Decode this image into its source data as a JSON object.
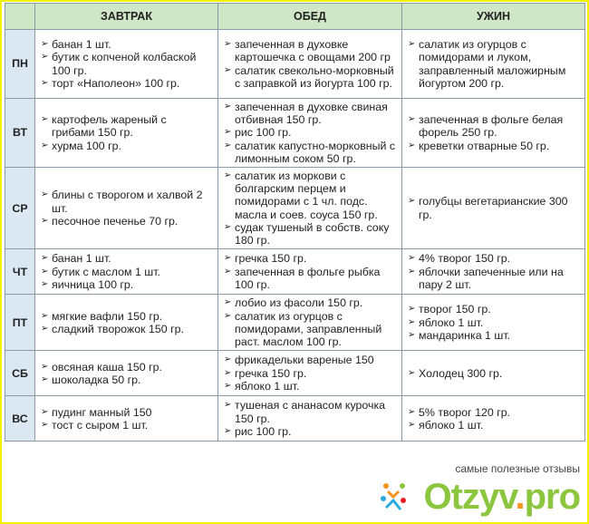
{
  "headers": [
    "",
    "ЗАВТРАК",
    "ОБЕД",
    "УЖИН"
  ],
  "rows": [
    {
      "day": "ПН",
      "breakfast": [
        "банан 1 шт.",
        "бутик с копченой колбаской 100 гр.",
        "торт «Наполеон» 100 гр."
      ],
      "lunch": [
        "запеченная в духовке картошечка с овощами 200 гр",
        "салатик свекольно-морковный с заправкой из йогурта 100 гр."
      ],
      "dinner": [
        "салатик из огурцов с помидорами и луком, заправленный маложирным йогуртом 200 гр."
      ]
    },
    {
      "day": "ВТ",
      "breakfast": [
        "картофель жареный с грибами 150 гр.",
        "хурма 100 гр."
      ],
      "lunch": [
        "запеченная в духовке свиная отбивная 150 гр.",
        "рис 100 гр.",
        "салатик капустно-морковный с лимонным соком 50 гр."
      ],
      "dinner": [
        "запеченная в фольге белая форель 250 гр.",
        "креветки отварные 50 гр."
      ]
    },
    {
      "day": "СР",
      "breakfast": [
        "блины с творогом и халвой 2 шт.",
        "песочное печенье 70 гр."
      ],
      "lunch": [
        "салатик из моркови с болгарским перцем и помидорами с 1 чл. подс. масла и соев. соуса 150 гр.",
        "судак тушеный в собств. соку 180 гр."
      ],
      "dinner": [
        "голубцы вегетарианские 300 гр."
      ]
    },
    {
      "day": "ЧТ",
      "breakfast": [
        "банан 1 шт.",
        "бутик с маслом 1 шт.",
        "яичница 100 гр."
      ],
      "lunch": [
        "гречка 150 гр.",
        "запеченная в фольге рыбка 100 гр."
      ],
      "dinner": [
        "4% творог 150 гр.",
        "яблочки запеченные или на пару 2 шт."
      ]
    },
    {
      "day": "ПТ",
      "breakfast": [
        "мягкие вафли 150 гр.",
        "сладкий творожок 150 гр."
      ],
      "lunch": [
        "лобио из фасоли 150 гр.",
        "салатик из огурцов с помидорами, заправленный раст. маслом 100 гр."
      ],
      "dinner": [
        "творог 150 гр.",
        "яблоко 1 шт.",
        "мандаринка 1 шт."
      ]
    },
    {
      "day": "СБ",
      "breakfast": [
        "овсяная каша 150 гр.",
        "шоколадка 50 гр."
      ],
      "lunch": [
        "фрикадельки вареные 150",
        "гречка 150 гр.",
        "яблоко 1 шт."
      ],
      "dinner": [
        "Холодец 300 гр."
      ]
    },
    {
      "day": "ВС",
      "breakfast": [
        "пудинг манный 150",
        "тост с сыром 1 шт."
      ],
      "lunch": [
        "тушеная с ананасом курочка 150 гр.",
        "рис 100 гр."
      ],
      "dinner": [
        "5% творог 120 гр.",
        "яблоко 1 шт."
      ]
    }
  ],
  "watermark": {
    "tagline": "самые полезные отзывы",
    "logo": "Otzyv.pro"
  },
  "colors": {
    "header_bg": "#cfe6c7",
    "day_bg": "#dbe8f4",
    "border": "#8a9aa6",
    "frame": "#f2f200",
    "logo": "#8cc63f"
  }
}
